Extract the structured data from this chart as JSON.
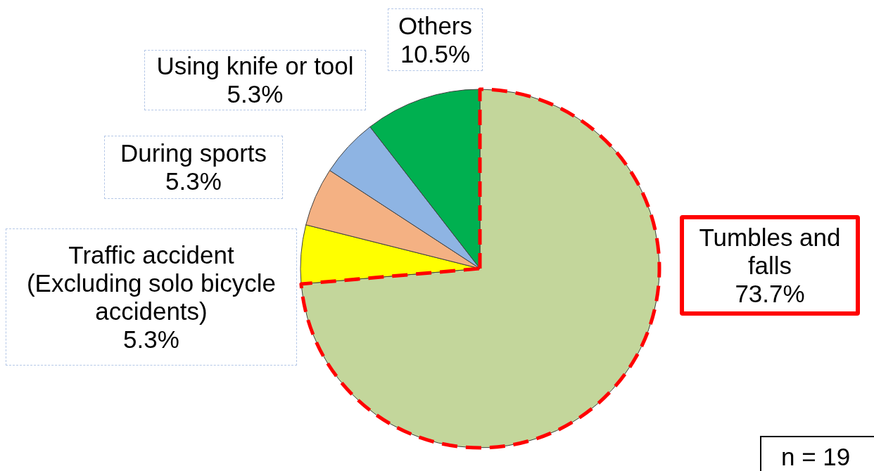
{
  "chart_data": {
    "type": "pie",
    "categories": [
      "Tumbles and falls",
      "Traffic accident (Excluding solo bicycle accidents)",
      "During sports",
      "Using knife or tool",
      "Others"
    ],
    "values": [
      73.7,
      5.3,
      5.3,
      5.3,
      10.5
    ],
    "colors": [
      "#c3d69b",
      "#ffff00",
      "#f4b183",
      "#8eb4e3",
      "#00b050"
    ],
    "value_labels": [
      "73.7%",
      "5.3%",
      "5.3%",
      "5.3%",
      "10.5%"
    ],
    "annotations": [
      "n = 19"
    ]
  }
}
